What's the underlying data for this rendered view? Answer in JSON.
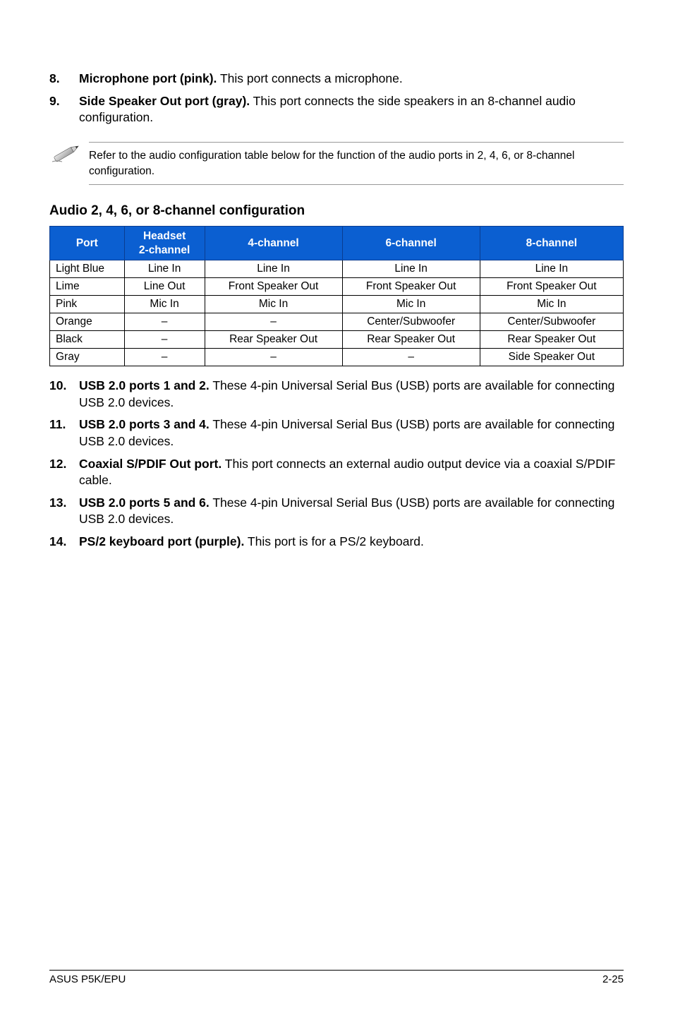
{
  "top_items": [
    {
      "num": "8.",
      "label": "Microphone port (pink).",
      "rest": " This port connects a microphone."
    },
    {
      "num": "9.",
      "label": "Side Speaker Out port (gray).",
      "rest": " This port connects the side speakers in an 8-channel audio configuration."
    }
  ],
  "note": "Refer to the audio configuration table below for the function of the audio ports in 2, 4, 6, or 8-channel configuration.",
  "section_heading": "Audio 2, 4, 6, or 8-channel configuration",
  "table": {
    "header_bg": "#0b5fd1",
    "columns": [
      {
        "label": "Port",
        "width": "13%"
      },
      {
        "label": "Headset\n2-channel",
        "width": "14%"
      },
      {
        "label": "4-channel",
        "width": "24%"
      },
      {
        "label": "6-channel",
        "width": "24%"
      },
      {
        "label": "8-channel",
        "width": "25%"
      }
    ],
    "rows": [
      [
        "Light Blue",
        "Line In",
        "Line In",
        "Line In",
        "Line In"
      ],
      [
        "Lime",
        "Line Out",
        "Front Speaker Out",
        "Front Speaker Out",
        "Front Speaker Out"
      ],
      [
        "Pink",
        "Mic In",
        "Mic In",
        "Mic In",
        "Mic In"
      ],
      [
        "Orange",
        "–",
        "–",
        "Center/Subwoofer",
        "Center/Subwoofer"
      ],
      [
        "Black",
        "–",
        "Rear Speaker Out",
        "Rear Speaker Out",
        "Rear Speaker Out"
      ],
      [
        "Gray",
        "–",
        "–",
        "–",
        "Side Speaker Out"
      ]
    ]
  },
  "bottom_items": [
    {
      "num": "10.",
      "label": "USB 2.0 ports 1 and 2.",
      "rest": " These 4-pin Universal Serial Bus (USB) ports are available for connecting USB 2.0 devices."
    },
    {
      "num": "11.",
      "label": "USB 2.0 ports 3 and 4.",
      "rest": " These 4-pin Universal Serial Bus (USB) ports are available for connecting USB 2.0 devices."
    },
    {
      "num": "12.",
      "label": "Coaxial S/PDIF Out port.",
      "rest": " This port connects an external audio output device via a coaxial S/PDIF cable."
    },
    {
      "num": "13.",
      "label": "USB 2.0 ports 5 and 6.",
      "rest": " These 4-pin Universal Serial Bus (USB) ports are available for connecting USB 2.0 devices."
    },
    {
      "num": "14.",
      "label": "PS/2 keyboard port (purple).",
      "rest": " This port is for a PS/2 keyboard."
    }
  ],
  "footer_left": "ASUS P5K/EPU",
  "footer_right": "2-25"
}
